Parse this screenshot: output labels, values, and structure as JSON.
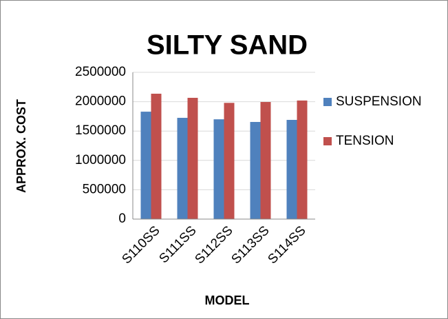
{
  "chart_data": {
    "type": "bar",
    "title": "SILTY SAND",
    "y_label": "APPROX. COST",
    "x_label": "MODEL",
    "categories": [
      "S110SS",
      "S111SS",
      "S112SS",
      "S113SS",
      "S114SS"
    ],
    "series": [
      {
        "name": "SUSPENSION",
        "color": "#4f81bd",
        "values": [
          1830000,
          1725000,
          1700000,
          1655000,
          1690000
        ]
      },
      {
        "name": "TENSION",
        "color": "#c0504d",
        "values": [
          2136000,
          2066000,
          1980000,
          1995000,
          2020000
        ]
      }
    ],
    "ylim": [
      0,
      2500000
    ],
    "yticks": [
      0,
      500000,
      1000000,
      1500000,
      2000000,
      2500000
    ],
    "grid": true,
    "legend": "right"
  }
}
